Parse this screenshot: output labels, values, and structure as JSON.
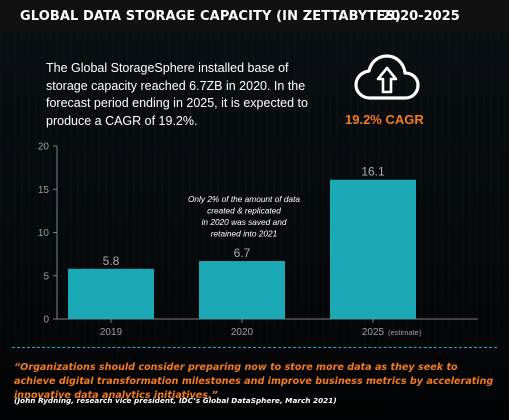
{
  "header": {
    "title": "GLOBAL DATA STORAGE CAPACITY (IN ZETTABYTES)",
    "years": "2020-2025"
  },
  "summary": {
    "text": "The Global StorageSphere installed base of storage capacity reached 6.7ZB in 2020. In the forecast period ending in 2025, it is expected to produce a CAGR of 19.2%."
  },
  "highlight": {
    "icon": "cloud-upload-icon",
    "cagr_label": "19.2% CAGR"
  },
  "chart_data": {
    "type": "bar",
    "categories": [
      "2019",
      "2020",
      "2025"
    ],
    "category_notes": [
      "",
      "",
      "(estimate)"
    ],
    "values": [
      5.8,
      6.7,
      16.1
    ],
    "value_labels": [
      "5.8",
      "6.7",
      "16.1"
    ],
    "y_ticks": [
      "0",
      "5",
      "10",
      "15",
      "20"
    ],
    "ylim": [
      0,
      20
    ],
    "grid": false,
    "bar_color": "#1ba9b5",
    "annotation": "Only 2% of the amount of data created & replicated in 2020 was saved and retained into 2021"
  },
  "footer": {
    "quote": "“Organizations should consider preparing now to store more data as they seek to achieve digital transformation milestones and improve business metrics by accelerating innovative data analytics initiatives.”",
    "attribution": "(John Rydning, research vice president, IDC’s Global DataSphere, March 2021)"
  },
  "colors": {
    "accent": "#f47b20",
    "teal": "#1ba9b5",
    "divider": "#17b3c9"
  }
}
